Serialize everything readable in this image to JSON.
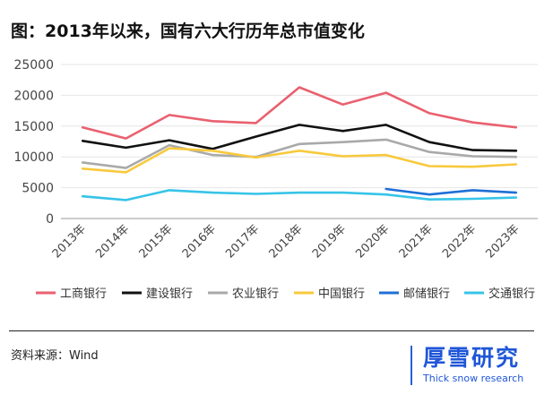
{
  "title": "图：2013年以来，国有六大行历年总市值变化",
  "source": "资料来源：Wind",
  "brand": {
    "name": "厚雪研究",
    "subtitle": "Thick snow research"
  },
  "colors": {
    "axis": "#999999",
    "grid": "#e6e6e6",
    "brand": "#1f56d8"
  },
  "chart_data": {
    "type": "line",
    "categories": [
      "2013年",
      "2014年",
      "2015年",
      "2016年",
      "2017年",
      "2018年",
      "2019年",
      "2020年",
      "2021年",
      "2022年",
      "2023年"
    ],
    "ylim": [
      0,
      25000
    ],
    "yticks": [
      0,
      5000,
      10000,
      15000,
      20000,
      25000
    ],
    "grid": true,
    "legend": "bottom",
    "series": [
      {
        "name": "工商银行",
        "color": "#e9616f",
        "values": [
          14800,
          13000,
          16800,
          15800,
          15500,
          21300,
          18500,
          20400,
          17100,
          15600,
          14800
        ]
      },
      {
        "name": "建设银行",
        "color": "#111111",
        "values": [
          12600,
          11500,
          12700,
          11300,
          13300,
          15200,
          14200,
          15200,
          12400,
          11100,
          11000
        ]
      },
      {
        "name": "农业银行",
        "color": "#a9a9a9",
        "values": [
          9100,
          8200,
          11900,
          10300,
          10000,
          12100,
          12400,
          12800,
          10800,
          10100,
          10000
        ]
      },
      {
        "name": "中国银行",
        "color": "#f8c93c",
        "values": [
          8100,
          7500,
          11400,
          11000,
          9900,
          11000,
          10100,
          10300,
          8500,
          8400,
          8800
        ]
      },
      {
        "name": "邮储银行",
        "color": "#1f6fd6",
        "values": [
          null,
          null,
          null,
          null,
          null,
          null,
          null,
          4800,
          3900,
          4600,
          4200
        ]
      },
      {
        "name": "交通银行",
        "color": "#36c4e8",
        "values": [
          3600,
          3000,
          4600,
          4200,
          4000,
          4200,
          4200,
          3900,
          3100,
          3200,
          3400
        ]
      }
    ]
  }
}
